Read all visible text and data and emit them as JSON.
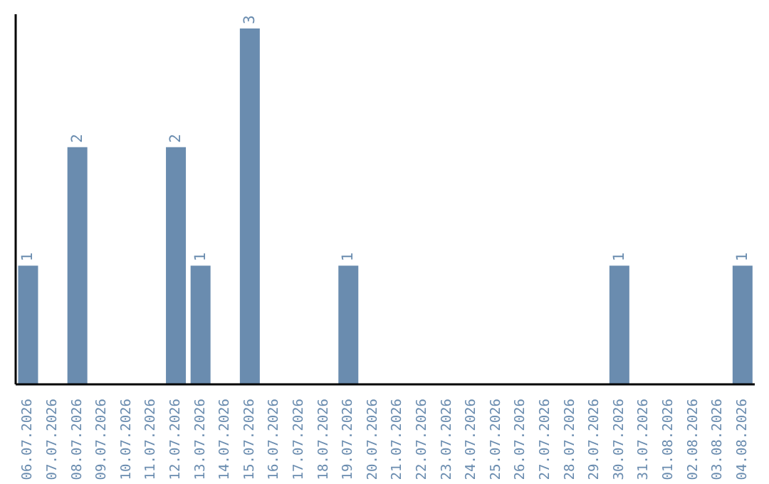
{
  "chart_data": {
    "type": "bar",
    "categories": [
      "06.07.2026",
      "07.07.2026",
      "08.07.2026",
      "09.07.2026",
      "10.07.2026",
      "11.07.2026",
      "12.07.2026",
      "13.07.2026",
      "14.07.2026",
      "15.07.2026",
      "16.07.2026",
      "17.07.2026",
      "18.07.2026",
      "19.07.2026",
      "20.07.2026",
      "21.07.2026",
      "22.07.2026",
      "23.07.2026",
      "24.07.2026",
      "25.07.2026",
      "26.07.2026",
      "27.07.2026",
      "28.07.2026",
      "29.07.2026",
      "30.07.2026",
      "31.07.2026",
      "01.08.2026",
      "02.08.2026",
      "03.08.2026",
      "04.08.2026"
    ],
    "values": [
      1,
      0,
      2,
      0,
      0,
      0,
      2,
      1,
      0,
      3,
      0,
      0,
      0,
      1,
      0,
      0,
      0,
      0,
      0,
      0,
      0,
      0,
      0,
      0,
      1,
      0,
      0,
      0,
      0,
      1
    ],
    "value_labels": [
      "1",
      null,
      "2",
      null,
      null,
      null,
      "2",
      "1",
      null,
      "3",
      null,
      null,
      null,
      "1",
      null,
      null,
      null,
      null,
      null,
      null,
      null,
      null,
      null,
      null,
      "1",
      null,
      null,
      null,
      null,
      "1"
    ],
    "color": "#6a8caf",
    "grid": false,
    "legend": false,
    "tick_labels": "x"
  }
}
